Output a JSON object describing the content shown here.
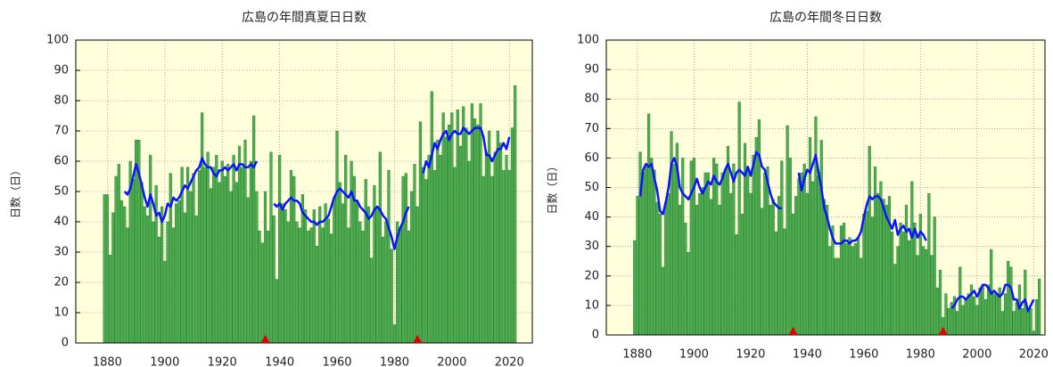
{
  "chart_data": [
    {
      "type": "bar",
      "title": "広島の年間真夏日日数",
      "ylabel": "日数（日）",
      "x": [
        1879,
        1880,
        1881,
        1882,
        1883,
        1884,
        1885,
        1886,
        1887,
        1888,
        1889,
        1890,
        1891,
        1892,
        1893,
        1894,
        1895,
        1896,
        1897,
        1898,
        1899,
        1900,
        1901,
        1902,
        1903,
        1904,
        1905,
        1906,
        1907,
        1908,
        1909,
        1910,
        1911,
        1912,
        1913,
        1914,
        1915,
        1916,
        1917,
        1918,
        1919,
        1920,
        1921,
        1922,
        1923,
        1924,
        1925,
        1926,
        1927,
        1928,
        1929,
        1930,
        1931,
        1932,
        1933,
        1934,
        1935,
        1936,
        1937,
        1938,
        1939,
        1940,
        1941,
        1942,
        1943,
        1944,
        1945,
        1946,
        1947,
        1948,
        1949,
        1950,
        1951,
        1952,
        1953,
        1954,
        1955,
        1956,
        1957,
        1958,
        1959,
        1960,
        1961,
        1962,
        1963,
        1964,
        1965,
        1966,
        1967,
        1968,
        1969,
        1970,
        1971,
        1972,
        1973,
        1974,
        1975,
        1976,
        1977,
        1978,
        1979,
        1980,
        1981,
        1982,
        1983,
        1984,
        1985,
        1986,
        1987,
        1988,
        1989,
        1990,
        1991,
        1992,
        1993,
        1994,
        1995,
        1996,
        1997,
        1998,
        1999,
        2000,
        2001,
        2002,
        2003,
        2004,
        2005,
        2006,
        2007,
        2008,
        2009,
        2010,
        2011,
        2012,
        2013,
        2014,
        2015,
        2016,
        2017,
        2018,
        2019,
        2020,
        2021,
        2022
      ],
      "series": [
        {
          "type": "bar",
          "color": "#4caf50",
          "values": [
            49,
            49,
            29,
            43,
            55,
            59,
            47,
            45,
            38,
            60,
            54,
            67,
            67,
            53,
            45,
            42,
            62,
            40,
            52,
            35,
            45,
            27,
            40,
            56,
            38,
            46,
            47,
            58,
            43,
            58,
            50,
            56,
            42,
            57,
            76,
            58,
            63,
            51,
            58,
            62,
            53,
            60,
            55,
            59,
            50,
            62,
            53,
            65,
            58,
            67,
            48,
            60,
            75,
            50,
            37,
            33,
            50,
            37,
            63,
            42,
            21,
            62,
            46,
            44,
            40,
            57,
            55,
            40,
            38,
            49,
            44,
            37,
            38,
            44,
            32,
            45,
            38,
            46,
            41,
            36,
            48,
            70,
            53,
            46,
            62,
            38,
            60,
            55,
            47,
            40,
            37,
            54,
            45,
            28,
            52,
            45,
            63,
            35,
            40,
            57,
            31,
            6,
            40,
            38,
            55,
            56,
            37,
            50,
            59,
            45,
            73,
            58,
            54,
            62,
            83,
            57,
            67,
            62,
            76,
            68,
            72,
            76,
            58,
            77,
            65,
            78,
            71,
            60,
            79,
            74,
            72,
            79,
            55,
            63,
            70,
            55,
            63,
            70,
            66,
            57,
            62,
            57,
            71,
            85
          ]
        },
        {
          "type": "line",
          "color": "#0a14ff",
          "values": [
            null,
            null,
            null,
            null,
            null,
            null,
            null,
            50,
            49,
            51,
            55,
            59,
            56,
            52,
            48,
            45,
            49,
            46,
            42,
            43,
            40,
            42,
            46,
            45,
            48,
            47,
            48,
            50,
            52,
            51,
            53,
            55,
            57,
            58,
            61,
            59,
            58,
            58,
            56,
            55,
            57,
            57,
            58,
            57,
            58,
            59,
            57,
            59,
            59,
            58,
            58,
            59,
            58,
            60,
            null,
            null,
            null,
            null,
            null,
            46,
            45,
            46,
            44,
            46,
            47,
            48,
            47,
            47,
            46,
            43,
            42,
            41,
            40,
            40,
            39,
            40,
            40,
            41,
            42,
            45,
            48,
            50,
            51,
            50,
            49,
            48,
            50,
            47,
            47,
            45,
            44,
            43,
            41,
            42,
            44,
            45,
            44,
            42,
            41,
            38,
            35,
            31,
            35,
            38,
            40,
            43,
            45,
            null,
            null,
            null,
            null,
            56,
            60,
            58,
            62,
            66,
            64,
            67,
            69,
            70,
            67,
            69,
            70,
            69,
            69,
            71,
            70,
            69,
            70,
            71,
            71,
            71,
            68,
            62,
            62,
            60,
            62,
            64,
            64,
            66,
            64,
            68,
            null,
            null
          ]
        }
      ],
      "markers": {
        "x": [
          1935,
          1988
        ],
        "color": "#e00000"
      },
      "xlim": [
        1869,
        2028
      ],
      "xticks": [
        1880,
        1900,
        1920,
        1940,
        1960,
        1980,
        2000,
        2020
      ],
      "ylim": [
        0,
        100
      ],
      "yticks": [
        0,
        10,
        20,
        30,
        40,
        50,
        60,
        70,
        80,
        90,
        100
      ],
      "grid": true,
      "background": "#ffffdc"
    },
    {
      "type": "bar",
      "title": "広島の年間冬日日数",
      "ylabel": "日数（日）",
      "x": [
        1879,
        1880,
        1881,
        1882,
        1883,
        1884,
        1885,
        1886,
        1887,
        1888,
        1889,
        1890,
        1891,
        1892,
        1893,
        1894,
        1895,
        1896,
        1897,
        1898,
        1899,
        1900,
        1901,
        1902,
        1903,
        1904,
        1905,
        1906,
        1907,
        1908,
        1909,
        1910,
        1911,
        1912,
        1913,
        1914,
        1915,
        1916,
        1917,
        1918,
        1919,
        1920,
        1921,
        1922,
        1923,
        1924,
        1925,
        1926,
        1927,
        1928,
        1929,
        1930,
        1931,
        1932,
        1933,
        1934,
        1935,
        1936,
        1937,
        1938,
        1939,
        1940,
        1941,
        1942,
        1943,
        1944,
        1945,
        1946,
        1947,
        1948,
        1949,
        1950,
        1951,
        1952,
        1953,
        1954,
        1955,
        1956,
        1957,
        1958,
        1959,
        1960,
        1961,
        1962,
        1963,
        1964,
        1965,
        1966,
        1967,
        1968,
        1969,
        1970,
        1971,
        1972,
        1973,
        1974,
        1975,
        1976,
        1977,
        1978,
        1979,
        1980,
        1981,
        1982,
        1983,
        1984,
        1985,
        1986,
        1987,
        1988,
        1989,
        1990,
        1991,
        1992,
        1993,
        1994,
        1995,
        1996,
        1997,
        1998,
        1999,
        2000,
        2001,
        2002,
        2003,
        2004,
        2005,
        2006,
        2007,
        2008,
        2009,
        2010,
        2011,
        2012,
        2013,
        2014,
        2015,
        2016,
        2017,
        2018,
        2019,
        2020,
        2021,
        2022
      ],
      "series": [
        {
          "type": "bar",
          "color": "#4caf50",
          "values": [
            32,
            47,
            62,
            55,
            57,
            75,
            60,
            56,
            45,
            41,
            23,
            45,
            48,
            69,
            58,
            65,
            44,
            60,
            38,
            28,
            59,
            60,
            44,
            48,
            50,
            55,
            55,
            46,
            60,
            58,
            44,
            55,
            56,
            64,
            48,
            58,
            34,
            79,
            41,
            65,
            57,
            48,
            61,
            67,
            73,
            43,
            55,
            57,
            44,
            46,
            35,
            47,
            59,
            36,
            71,
            60,
            41,
            47,
            53,
            55,
            58,
            48,
            67,
            52,
            74,
            54,
            66,
            46,
            44,
            30,
            37,
            26,
            26,
            37,
            38,
            31,
            33,
            30,
            31,
            33,
            26,
            41,
            42,
            64,
            40,
            57,
            48,
            52,
            46,
            44,
            47,
            35,
            24,
            30,
            38,
            35,
            44,
            32,
            52,
            38,
            27,
            41,
            30,
            29,
            48,
            27,
            40,
            16,
            22,
            6,
            14,
            9,
            11,
            13,
            8,
            23,
            10,
            12,
            14,
            17,
            13,
            10,
            16,
            17,
            12,
            17,
            29,
            14,
            14,
            16,
            8,
            14,
            25,
            23,
            8,
            11,
            17,
            9,
            22,
            8,
            9,
            1,
            12,
            19
          ]
        },
        {
          "type": "line",
          "color": "#0a14ff",
          "values": [
            null,
            null,
            47,
            56,
            58,
            57,
            58,
            53,
            49,
            42,
            41,
            45,
            50,
            58,
            60,
            57,
            50,
            48,
            47,
            46,
            48,
            50,
            53,
            50,
            48,
            50,
            52,
            51,
            54,
            52,
            51,
            53,
            56,
            58,
            55,
            52,
            55,
            56,
            55,
            54,
            57,
            54,
            58,
            62,
            61,
            57,
            56,
            52,
            48,
            45,
            44,
            43,
            43,
            null,
            null,
            null,
            null,
            null,
            55,
            49,
            53,
            56,
            55,
            58,
            61,
            55,
            50,
            43,
            40,
            36,
            33,
            31,
            31,
            31,
            32,
            32,
            31,
            32,
            32,
            33,
            35,
            40,
            44,
            47,
            46,
            47,
            47,
            46,
            43,
            40,
            38,
            36,
            39,
            34,
            36,
            37,
            35,
            36,
            33,
            36,
            33,
            35,
            34,
            32,
            null,
            null,
            null,
            null,
            null,
            null,
            null,
            null,
            9,
            10,
            12,
            13,
            13,
            12,
            13,
            14,
            15,
            13,
            15,
            17,
            17,
            16,
            14,
            15,
            14,
            13,
            14,
            17,
            17,
            16,
            12,
            12,
            9,
            11,
            12,
            8,
            10,
            12,
            null,
            null
          ]
        }
      ],
      "markers": {
        "x": [
          1935,
          1988
        ],
        "color": "#e00000"
      },
      "xlim": [
        1869,
        2024
      ],
      "xticks": [
        1880,
        1900,
        1920,
        1940,
        1960,
        1980,
        2000,
        2020
      ],
      "ylim": [
        0,
        100
      ],
      "yticks": [
        0,
        10,
        20,
        30,
        40,
        50,
        60,
        70,
        80,
        90,
        100
      ],
      "grid": true,
      "background": "#ffffdc"
    }
  ]
}
